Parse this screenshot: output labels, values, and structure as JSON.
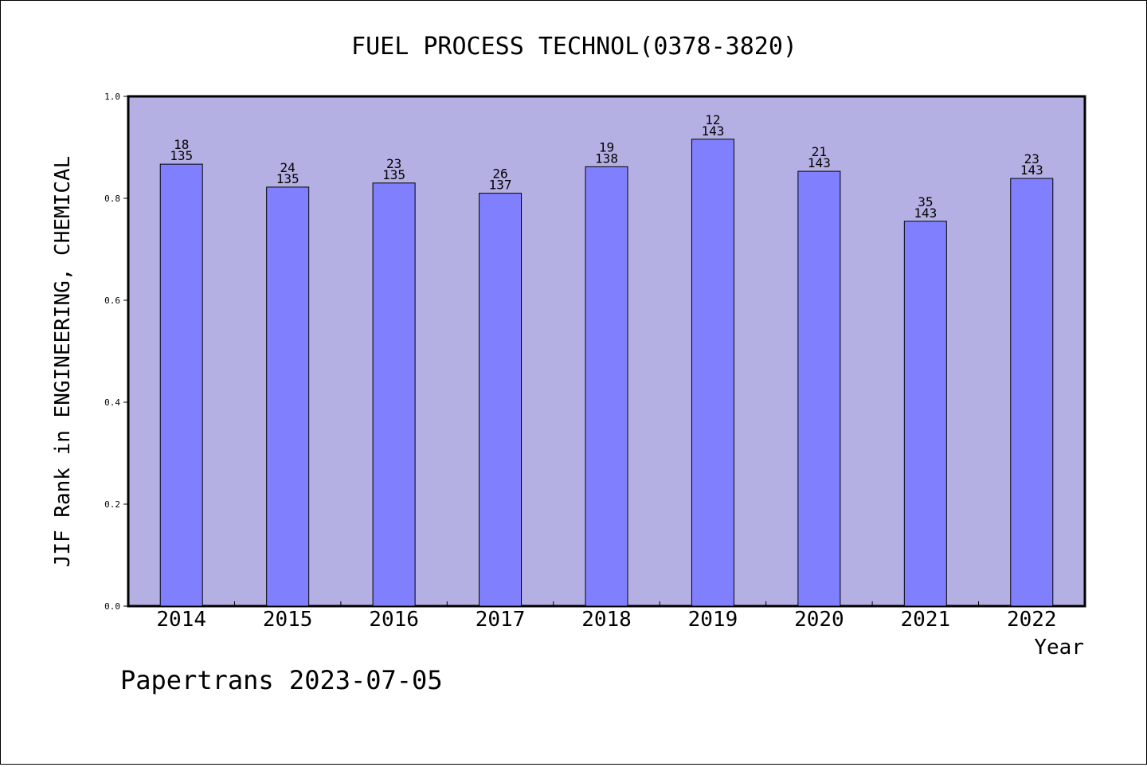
{
  "chart_data": {
    "type": "bar",
    "title": "FUEL PROCESS TECHNOL(0378-3820)",
    "xlabel": "Year",
    "ylabel": "JIF Rank in ENGINEERING, CHEMICAL",
    "categories": [
      "2014",
      "2015",
      "2016",
      "2017",
      "2018",
      "2019",
      "2020",
      "2021",
      "2022"
    ],
    "values": [
      0.867,
      0.822,
      0.83,
      0.81,
      0.862,
      0.916,
      0.853,
      0.755,
      0.839
    ],
    "bar_labels": [
      [
        "18",
        "135"
      ],
      [
        "24",
        "135"
      ],
      [
        "23",
        "135"
      ],
      [
        "26",
        "137"
      ],
      [
        "19",
        "138"
      ],
      [
        "12",
        "143"
      ],
      [
        "21",
        "143"
      ],
      [
        "35",
        "143"
      ],
      [
        "23",
        "143"
      ]
    ],
    "ylim": [
      0,
      1.0
    ],
    "yticks": [
      "0.0",
      "0.2",
      "0.4",
      "0.6",
      "0.8",
      "1.0"
    ],
    "grid": false,
    "colors": {
      "plot_bg": "#b5b0e3",
      "bar": "#8080ff",
      "border": "#000000"
    }
  },
  "footer": {
    "watermark": "Papertrans 2023-07-05"
  }
}
